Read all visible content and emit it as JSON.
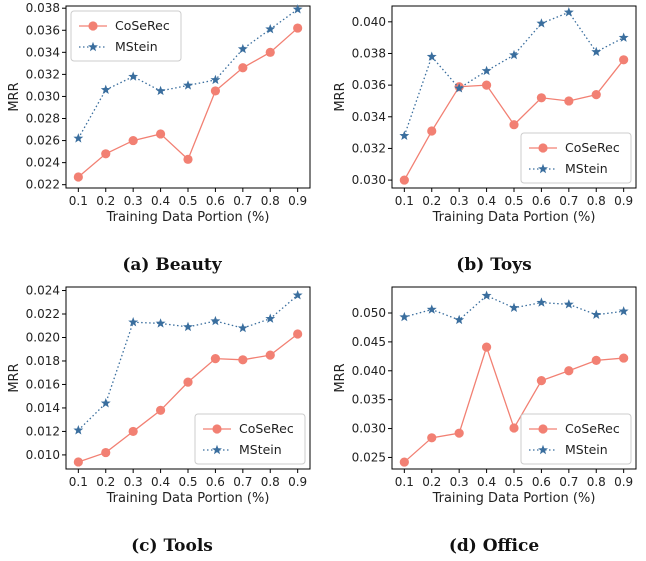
{
  "colors": {
    "coserec": "#f28073",
    "mstein": "#3a6e9e"
  },
  "chart_data": [
    {
      "type": "line",
      "caption": "(a) Beauty",
      "xlabel": "Training Data Portion (%)",
      "ylabel": "MRR",
      "x": [
        0.1,
        0.2,
        0.3,
        0.4,
        0.5,
        0.6,
        0.7,
        0.8,
        0.9
      ],
      "x_ticks": [
        "0.1",
        "0.2",
        "0.3",
        "0.4",
        "0.5",
        "0.6",
        "0.7",
        "0.8",
        "0.9"
      ],
      "ylim": [
        0.0217,
        0.0382
      ],
      "y_ticks": [
        0.022,
        0.024,
        0.026,
        0.028,
        0.03,
        0.032,
        0.034,
        0.036,
        0.038
      ],
      "y_tick_labels": [
        "0.022",
        "0.024",
        "0.026",
        "0.028",
        "0.030",
        "0.032",
        "0.034",
        "0.036",
        "0.038"
      ],
      "legend": "top-left",
      "series": [
        {
          "name": "CoSeRec",
          "values": [
            0.0227,
            0.0248,
            0.026,
            0.0266,
            0.0243,
            0.0305,
            0.0326,
            0.034,
            0.0362
          ]
        },
        {
          "name": "MStein",
          "values": [
            0.0262,
            0.0306,
            0.0318,
            0.0305,
            0.031,
            0.0315,
            0.0343,
            0.0361,
            0.0379
          ]
        }
      ]
    },
    {
      "type": "line",
      "caption": "(b) Toys",
      "xlabel": "Training Data Portion (%)",
      "ylabel": "MRR",
      "x": [
        0.1,
        0.2,
        0.3,
        0.4,
        0.5,
        0.6,
        0.7,
        0.8,
        0.9
      ],
      "x_ticks": [
        "0.1",
        "0.2",
        "0.3",
        "0.4",
        "0.5",
        "0.6",
        "0.7",
        "0.8",
        "0.9"
      ],
      "ylim": [
        0.0295,
        0.041
      ],
      "y_ticks": [
        0.03,
        0.032,
        0.034,
        0.036,
        0.038,
        0.04
      ],
      "y_tick_labels": [
        "0.030",
        "0.032",
        "0.034",
        "0.036",
        "0.038",
        "0.040"
      ],
      "legend": "bottom-right",
      "series": [
        {
          "name": "CoSeRec",
          "values": [
            0.03,
            0.0331,
            0.0359,
            0.036,
            0.0335,
            0.0352,
            0.035,
            0.0354,
            0.0376
          ]
        },
        {
          "name": "MStein",
          "values": [
            0.0328,
            0.0378,
            0.0358,
            0.0369,
            0.0379,
            0.0399,
            0.0406,
            0.0381,
            0.039
          ]
        }
      ]
    },
    {
      "type": "line",
      "caption": "(c) Tools",
      "xlabel": "Training Data Portion (%)",
      "ylabel": "MRR",
      "x": [
        0.1,
        0.2,
        0.3,
        0.4,
        0.5,
        0.6,
        0.7,
        0.8,
        0.9
      ],
      "x_ticks": [
        "0.1",
        "0.2",
        "0.3",
        "0.4",
        "0.5",
        "0.6",
        "0.7",
        "0.8",
        "0.9"
      ],
      "ylim": [
        0.0088,
        0.0243
      ],
      "y_ticks": [
        0.01,
        0.012,
        0.014,
        0.016,
        0.018,
        0.02,
        0.022,
        0.024
      ],
      "y_tick_labels": [
        "0.010",
        "0.012",
        "0.014",
        "0.016",
        "0.018",
        "0.020",
        "0.022",
        "0.024"
      ],
      "legend": "bottom-right",
      "series": [
        {
          "name": "CoSeRec",
          "values": [
            0.0094,
            0.0102,
            0.012,
            0.0138,
            0.0162,
            0.0182,
            0.0181,
            0.0185,
            0.0203
          ]
        },
        {
          "name": "MStein",
          "values": [
            0.0121,
            0.0144,
            0.0213,
            0.0212,
            0.0209,
            0.0214,
            0.0208,
            0.0216,
            0.0236
          ]
        }
      ]
    },
    {
      "type": "line",
      "caption": "(d) Office",
      "xlabel": "Training Data Portion (%)",
      "ylabel": "MRR",
      "x": [
        0.1,
        0.2,
        0.3,
        0.4,
        0.5,
        0.6,
        0.7,
        0.8,
        0.9
      ],
      "x_ticks": [
        "0.1",
        "0.2",
        "0.3",
        "0.4",
        "0.5",
        "0.6",
        "0.7",
        "0.8",
        "0.9"
      ],
      "ylim": [
        0.023,
        0.0545
      ],
      "y_ticks": [
        0.025,
        0.03,
        0.035,
        0.04,
        0.045,
        0.05
      ],
      "y_tick_labels": [
        "0.025",
        "0.030",
        "0.035",
        "0.040",
        "0.045",
        "0.050"
      ],
      "legend": "bottom-right",
      "series": [
        {
          "name": "CoSeRec",
          "values": [
            0.0242,
            0.0284,
            0.0292,
            0.0441,
            0.0301,
            0.0383,
            0.04,
            0.0418,
            0.0422
          ]
        },
        {
          "name": "MStein",
          "values": [
            0.0493,
            0.0506,
            0.0488,
            0.053,
            0.0509,
            0.0518,
            0.0515,
            0.0497,
            0.0503
          ]
        }
      ]
    }
  ]
}
